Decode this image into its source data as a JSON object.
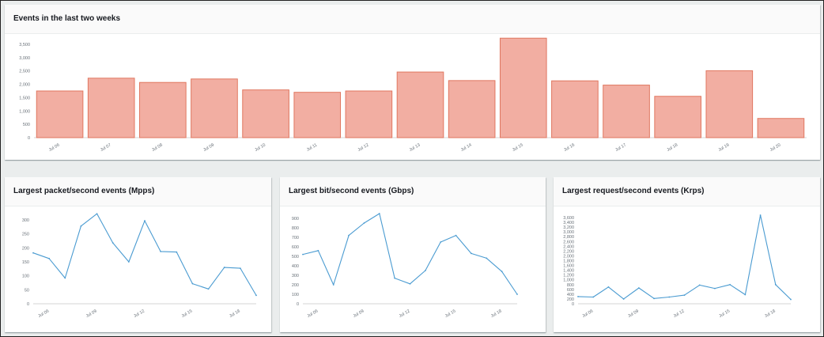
{
  "colors": {
    "bar_fill": "#f2aea2",
    "bar_stroke": "#e07760",
    "line": "#4a9bd1"
  },
  "panels": {
    "events": {
      "title": "Events in the last two weeks"
    },
    "packets": {
      "title": "Largest packet/second events (Mpps)"
    },
    "bits": {
      "title": "Largest bit/second events (Gbps)"
    },
    "requests": {
      "title": "Largest request/second events (Krps)"
    }
  },
  "chart_data": [
    {
      "id": "events",
      "type": "bar",
      "title": "Events in the last two weeks",
      "categories": [
        "Jul 06",
        "Jul 07",
        "Jul 08",
        "Jul 09",
        "Jul 10",
        "Jul 11",
        "Jul 12",
        "Jul 13",
        "Jul 14",
        "Jul 15",
        "Jul 16",
        "Jul 17",
        "Jul 18",
        "Jul 19",
        "Jul 20"
      ],
      "values": [
        1750,
        2230,
        2070,
        2200,
        1790,
        1700,
        1750,
        2460,
        2140,
        3730,
        2130,
        1970,
        1550,
        2510,
        720
      ],
      "yticks": [
        "0",
        "500",
        "1,000",
        "1,500",
        "2,000",
        "2,500",
        "3,000",
        "3,500"
      ],
      "ylim": [
        0,
        3500
      ],
      "grid": false
    },
    {
      "id": "packets",
      "type": "line",
      "title": "Largest packet/second events (Mpps)",
      "x": [
        0,
        1,
        2,
        3,
        4,
        5,
        6,
        7,
        8,
        9,
        10,
        11,
        12,
        13,
        14
      ],
      "values": [
        182,
        162,
        92,
        278,
        322,
        218,
        150,
        297,
        187,
        185,
        72,
        53,
        130,
        127,
        30
      ],
      "xticks": [
        {
          "i": 1,
          "label": "Jul 06"
        },
        {
          "i": 4,
          "label": "Jul 09"
        },
        {
          "i": 7,
          "label": "Jul 12"
        },
        {
          "i": 10,
          "label": "Jul 15"
        },
        {
          "i": 13,
          "label": "Jul 18"
        }
      ],
      "yticks": [
        "0",
        "50",
        "100",
        "150",
        "200",
        "250",
        "300"
      ],
      "ylim": [
        0,
        300
      ],
      "grid": false
    },
    {
      "id": "bits",
      "type": "line",
      "title": "Largest bit/second events (Gbps)",
      "x": [
        0,
        1,
        2,
        3,
        4,
        5,
        6,
        7,
        8,
        9,
        10,
        11,
        12,
        13,
        14
      ],
      "values": [
        520,
        560,
        200,
        720,
        850,
        950,
        270,
        210,
        350,
        650,
        720,
        530,
        480,
        340,
        100
      ],
      "xticks": [
        {
          "i": 1,
          "label": "Jul 06"
        },
        {
          "i": 4,
          "label": "Jul 09"
        },
        {
          "i": 7,
          "label": "Jul 12"
        },
        {
          "i": 10,
          "label": "Jul 15"
        },
        {
          "i": 13,
          "label": "Jul 18"
        }
      ],
      "yticks": [
        "0",
        "100",
        "200",
        "300",
        "400",
        "500",
        "600",
        "700",
        "800",
        "900"
      ],
      "ylim": [
        0,
        900
      ],
      "grid": false
    },
    {
      "id": "requests",
      "type": "line",
      "title": "Largest request/second events (Krps)",
      "x": [
        0,
        1,
        2,
        3,
        4,
        5,
        6,
        7,
        8,
        9,
        10,
        11,
        12,
        13,
        14
      ],
      "values": [
        300,
        280,
        700,
        200,
        660,
        220,
        280,
        360,
        780,
        640,
        800,
        380,
        3700,
        800,
        180
      ],
      "xticks": [
        {
          "i": 1,
          "label": "Jul 06"
        },
        {
          "i": 4,
          "label": "Jul 09"
        },
        {
          "i": 7,
          "label": "Jul 12"
        },
        {
          "i": 10,
          "label": "Jul 15"
        },
        {
          "i": 13,
          "label": "Jul 18"
        }
      ],
      "yticks": [
        "0",
        "200",
        "400",
        "600",
        "800",
        "1,000",
        "1,200",
        "1,400",
        "1,600",
        "1,800",
        "2,000",
        "2,200",
        "2,400",
        "2,600",
        "2,800",
        "3,000",
        "3,200",
        "3,400",
        "3,600"
      ],
      "ylim": [
        0,
        3600
      ],
      "grid": false
    }
  ]
}
